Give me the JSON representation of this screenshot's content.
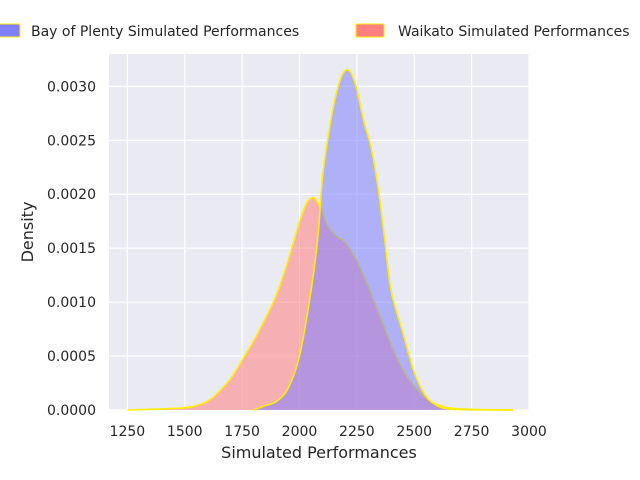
{
  "chart_data": {
    "type": "area",
    "title": "",
    "xlabel": "Simulated Performances",
    "ylabel": "Density",
    "xlim": [
      1170,
      3000
    ],
    "ylim": [
      0,
      0.0033
    ],
    "grid": true,
    "legend_placement": "top",
    "x_ticks": [
      "1250",
      "1500",
      "1750",
      "2000",
      "2250",
      "2500",
      "2750",
      "3000"
    ],
    "x_tick_values": [
      1250,
      1500,
      1750,
      2000,
      2250,
      2500,
      2750,
      3000
    ],
    "y_ticks": [
      "0.0000",
      "0.0005",
      "0.0010",
      "0.0015",
      "0.0020",
      "0.0025",
      "0.0030"
    ],
    "y_tick_values": [
      0,
      0.0005,
      0.001,
      0.0015,
      0.002,
      0.0025,
      0.003
    ],
    "series": [
      {
        "name": "Waikato Simulated Performances",
        "fill_color": "#ff8080",
        "edge_color": "#ffee00",
        "x": [
          1250,
          1400,
          1500,
          1550,
          1600,
          1650,
          1700,
          1750,
          1800,
          1850,
          1900,
          1950,
          2000,
          2030,
          2060,
          2090,
          2120,
          2150,
          2200,
          2250,
          2300,
          2350,
          2400,
          2450,
          2500,
          2550,
          2600,
          2650,
          2700,
          2800,
          2930
        ],
        "y": [
          0,
          1e-05,
          2e-05,
          4e-05,
          8e-05,
          0.00017,
          0.00029,
          0.00046,
          0.00064,
          0.00084,
          0.00107,
          0.00138,
          0.00174,
          0.00191,
          0.00197,
          0.00188,
          0.00172,
          0.00163,
          0.00155,
          0.00138,
          0.00114,
          0.00087,
          0.0006,
          0.00037,
          0.00022,
          0.00011,
          5e-05,
          2e-05,
          1e-05,
          3e-06,
          0
        ]
      },
      {
        "name": "Bay of Plenty Simulated Performances",
        "fill_color": "#8080ff",
        "edge_color": "#ffee00",
        "x": [
          1800,
          1850,
          1900,
          1950,
          2000,
          2050,
          2080,
          2100,
          2130,
          2160,
          2190,
          2220,
          2250,
          2280,
          2310,
          2340,
          2370,
          2400,
          2450,
          2500,
          2550,
          2600,
          2650,
          2750,
          2930
        ],
        "y": [
          0,
          4e-05,
          8e-05,
          0.0002,
          0.0005,
          0.0011,
          0.0016,
          0.00215,
          0.0026,
          0.00293,
          0.00312,
          0.00314,
          0.00297,
          0.00268,
          0.00245,
          0.0021,
          0.0016,
          0.0011,
          0.00072,
          0.00035,
          0.00013,
          4e-05,
          1e-05,
          2e-06,
          0
        ]
      }
    ],
    "fill_opacity": 0.55
  }
}
